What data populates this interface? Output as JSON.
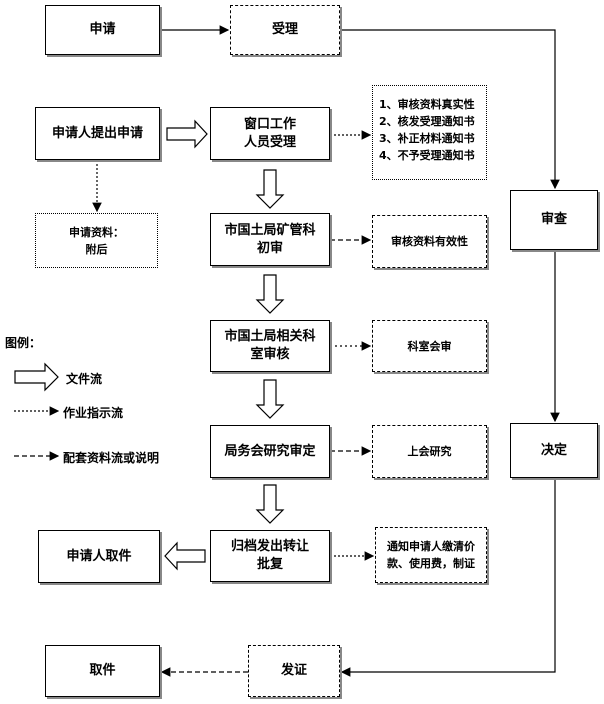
{
  "top": {
    "apply": "申请",
    "accept": "受理"
  },
  "right": {
    "review": "审查",
    "decide": "决定"
  },
  "bottom": {
    "pickup": "取件",
    "issue": "发证"
  },
  "flow": {
    "applicant_submit": "申请人提出申请",
    "window_accept": [
      "窗口工作",
      "人员受理"
    ],
    "materials": [
      "申请资料：",
      "附后"
    ],
    "bureau_first_review": [
      "市国土局矿管科",
      "初审"
    ],
    "bureau_dept_review": [
      "市国土局相关科",
      "室审核"
    ],
    "bureau_meeting": "局务会研究审定",
    "archive_issue": [
      "归档发出转让",
      "批复"
    ],
    "applicant_pickup": "申请人取件"
  },
  "notes": {
    "window": [
      "1、审核资料真实性",
      "2、核发受理通知书",
      "3、补正材料通知书",
      "4、不予受理通知书"
    ],
    "first_review": "审核资料有效性",
    "dept_review": "科室会审",
    "meeting": "上会研究",
    "archive": [
      "通知申请人缴清价",
      "款、使用费，制证"
    ]
  },
  "legend": {
    "title": "图例：",
    "file_flow": "文件流",
    "work_flow": "作业指示流",
    "material_flow": "配套资料流或说明"
  }
}
